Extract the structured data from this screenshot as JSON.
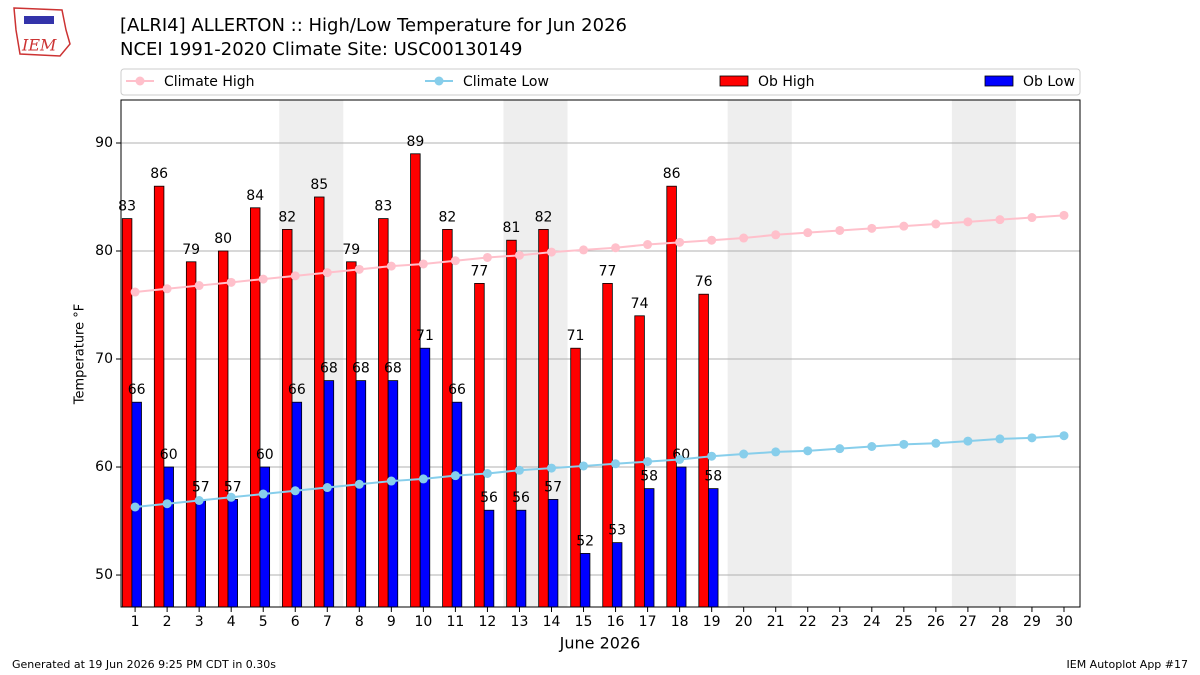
{
  "logo_text": "IEM",
  "footer_left": "Generated at 19 Jun 2026 9:25 PM CDT in 0.30s",
  "footer_right": "IEM Autoplot App #17",
  "chart_data": {
    "type": "bar_line",
    "title": "[ALRI4] ALLERTON :: High/Low Temperature for Jun 2026",
    "subtitle": "NCEI 1991-2020 Climate Site: USC00130149",
    "xlabel": "June 2026",
    "ylabel": "Temperature °F",
    "x": [
      1,
      2,
      3,
      4,
      5,
      6,
      7,
      8,
      9,
      10,
      11,
      12,
      13,
      14,
      15,
      16,
      17,
      18,
      19,
      20,
      21,
      22,
      23,
      24,
      25,
      26,
      27,
      28,
      29,
      30
    ],
    "xlim": [
      0.56,
      30.5
    ],
    "xticks": [
      1,
      2,
      3,
      4,
      5,
      6,
      7,
      8,
      9,
      10,
      11,
      12,
      13,
      14,
      15,
      16,
      17,
      18,
      19,
      20,
      21,
      22,
      23,
      24,
      25,
      26,
      27,
      28,
      29,
      30
    ],
    "ylim": [
      47.04,
      93.98
    ],
    "yticks": [
      50,
      60,
      70,
      80,
      90
    ],
    "grid": true,
    "shaded": [
      [
        5.5,
        7.5
      ],
      [
        12.5,
        14.5
      ],
      [
        19.5,
        21.5
      ],
      [
        26.5,
        28.5
      ]
    ],
    "series": [
      {
        "name": "Climate High",
        "kind": "line",
        "color": "#ffc0cb",
        "values": [
          76.2,
          76.5,
          76.8,
          77.1,
          77.4,
          77.7,
          78.0,
          78.3,
          78.6,
          78.8,
          79.1,
          79.4,
          79.6,
          79.9,
          80.1,
          80.3,
          80.6,
          80.8,
          81.0,
          81.2,
          81.5,
          81.7,
          81.9,
          82.1,
          82.3,
          82.5,
          82.7,
          82.9,
          83.1,
          83.3
        ]
      },
      {
        "name": "Climate Low",
        "kind": "line",
        "color": "#87ceeb",
        "values": [
          56.3,
          56.6,
          56.9,
          57.2,
          57.5,
          57.8,
          58.1,
          58.4,
          58.7,
          58.9,
          59.2,
          59.4,
          59.7,
          59.9,
          60.1,
          60.3,
          60.5,
          60.7,
          61.0,
          61.2,
          61.4,
          61.5,
          61.7,
          61.9,
          62.1,
          62.2,
          62.4,
          62.6,
          62.7,
          62.9
        ]
      },
      {
        "name": "Ob High",
        "kind": "bar",
        "color": "#ff0000",
        "values": [
          83,
          86,
          79,
          80,
          84,
          82,
          85,
          79,
          83,
          89,
          82,
          77,
          81,
          82,
          71,
          77,
          74,
          86,
          76,
          null,
          null,
          null,
          null,
          null,
          null,
          null,
          null,
          null,
          null,
          null
        ]
      },
      {
        "name": "Ob Low",
        "kind": "bar",
        "color": "#0000ff",
        "values": [
          66,
          60,
          57,
          57,
          60,
          66,
          68,
          68,
          68,
          71,
          66,
          56,
          56,
          57,
          52,
          53,
          58,
          60,
          58,
          null,
          null,
          null,
          null,
          null,
          null,
          null,
          null,
          null,
          null,
          null
        ]
      }
    ]
  }
}
